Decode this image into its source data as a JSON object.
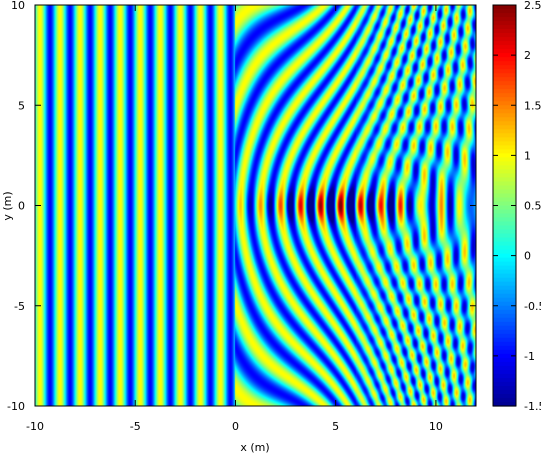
{
  "chart_data": {
    "type": "heatmap",
    "title": "",
    "xlabel": "x (m)",
    "ylabel": "y (m)",
    "xlim": [
      -10,
      12
    ],
    "ylim": [
      -10,
      10
    ],
    "xticks": [
      "-10",
      "-5",
      "0",
      "5",
      "10"
    ],
    "yticks": [
      "-10",
      "-5",
      "0",
      "5",
      "10"
    ],
    "colorbar": {
      "range": [
        -1.5,
        2.5
      ],
      "ticks": [
        "-1.5",
        "-1",
        "-0.5",
        "0",
        "0.5",
        "1",
        "1.5",
        "2",
        "2.5"
      ]
    },
    "colormap": [
      "#00008f",
      "#0000ff",
      "#0080ff",
      "#00ffff",
      "#80ff80",
      "#ffff00",
      "#ff8000",
      "#ff0000",
      "#800000"
    ],
    "field": {
      "description_free": true,
      "incident_wavelength_m": 1.0,
      "incident_amplitude": 1.0,
      "focus_x_m": 5.5,
      "focus_y_m": 0,
      "peak_value": 2.5,
      "min_value": -1.5
    }
  }
}
